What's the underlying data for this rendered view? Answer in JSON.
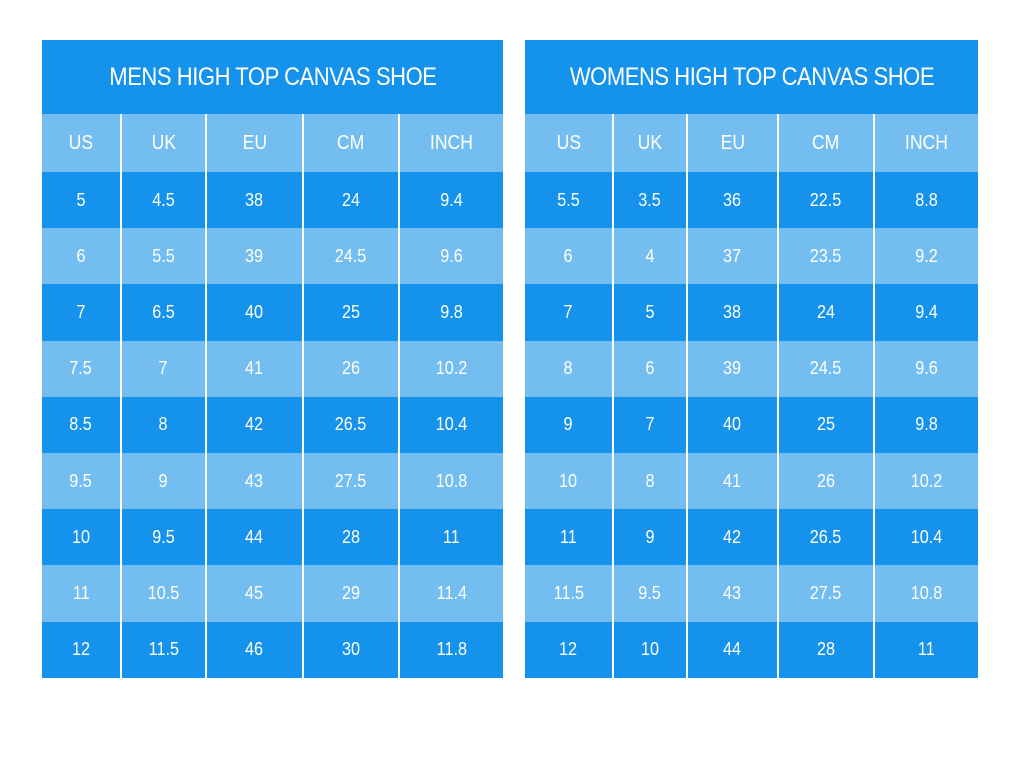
{
  "tables": [
    {
      "title": "MENS HIGH TOP CANVAS SHOE",
      "columns": [
        "US",
        "UK",
        "EU",
        "CM",
        "INCH"
      ],
      "rows": [
        [
          "5",
          "4.5",
          "38",
          "24",
          "9.4"
        ],
        [
          "6",
          "5.5",
          "39",
          "24.5",
          "9.6"
        ],
        [
          "7",
          "6.5",
          "40",
          "25",
          "9.8"
        ],
        [
          "7.5",
          "7",
          "41",
          "26",
          "10.2"
        ],
        [
          "8.5",
          "8",
          "42",
          "26.5",
          "10.4"
        ],
        [
          "9.5",
          "9",
          "43",
          "27.5",
          "10.8"
        ],
        [
          "10",
          "9.5",
          "44",
          "28",
          "11"
        ],
        [
          "11",
          "10.5",
          "45",
          "29",
          "11.4"
        ],
        [
          "12",
          "11.5",
          "46",
          "30",
          "11.8"
        ]
      ]
    },
    {
      "title": "WOMENS HIGH TOP CANVAS SHOE",
      "columns": [
        "US",
        "UK",
        "EU",
        "CM",
        "INCH"
      ],
      "rows": [
        [
          "5.5",
          "3.5",
          "36",
          "22.5",
          "8.8"
        ],
        [
          "6",
          "4",
          "37",
          "23.5",
          "9.2"
        ],
        [
          "7",
          "5",
          "38",
          "24",
          "9.4"
        ],
        [
          "8",
          "6",
          "39",
          "24.5",
          "9.6"
        ],
        [
          "9",
          "7",
          "40",
          "25",
          "9.8"
        ],
        [
          "10",
          "8",
          "41",
          "26",
          "10.2"
        ],
        [
          "11",
          "9",
          "42",
          "26.5",
          "10.4"
        ],
        [
          "11.5",
          "9.5",
          "43",
          "27.5",
          "10.8"
        ],
        [
          "12",
          "10",
          "44",
          "28",
          "11"
        ]
      ]
    }
  ]
}
